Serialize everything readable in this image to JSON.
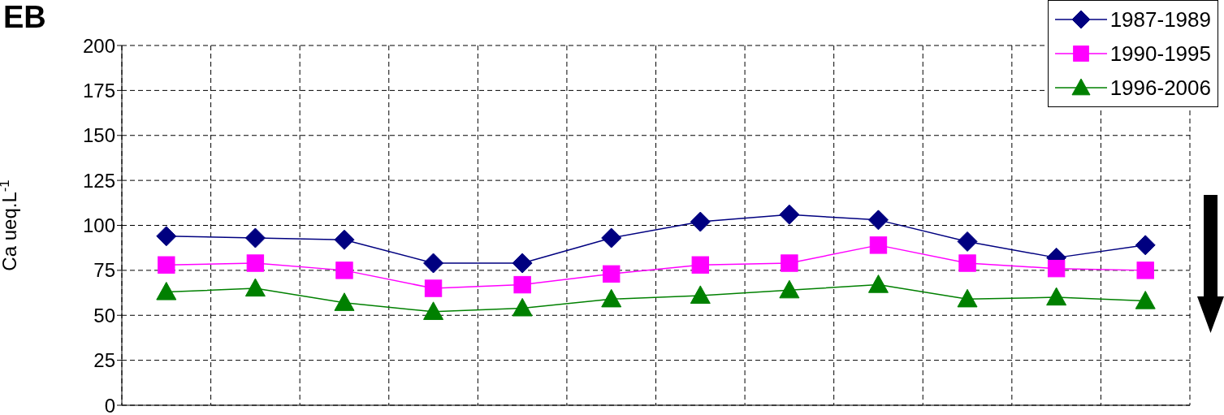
{
  "chart_data": {
    "type": "line",
    "title": "EB",
    "ylabel": "Ca ueq.L$^{-1}$",
    "categories": [
      null,
      null,
      null,
      null,
      null,
      null,
      null,
      null,
      null,
      null,
      null,
      null
    ],
    "series": [
      {
        "name": "1987-1989",
        "color": "#000080",
        "marker": "diamond",
        "values": [
          94,
          93,
          92,
          79,
          79,
          93,
          102,
          106,
          103,
          91,
          82,
          89
        ]
      },
      {
        "name": "1990-1995",
        "color": "#ff00ff",
        "marker": "square",
        "values": [
          78,
          79,
          75,
          65,
          67,
          73,
          78,
          79,
          89,
          79,
          76,
          75
        ]
      },
      {
        "name": "1996-2006",
        "color": "#008000",
        "marker": "triangle",
        "values": [
          63,
          65,
          57,
          52,
          54,
          59,
          61,
          64,
          67,
          59,
          60,
          58
        ]
      }
    ],
    "ylim": [
      0,
      200
    ],
    "yticks": [
      0,
      25,
      50,
      75,
      100,
      125,
      150,
      175,
      200
    ],
    "grid": true,
    "legend": "top right",
    "line_style": "solid"
  }
}
